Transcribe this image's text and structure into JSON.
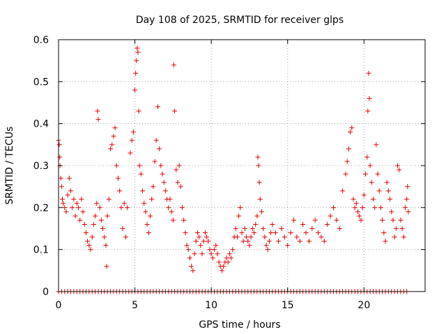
{
  "chart_data": {
    "type": "scatter",
    "title": "Day 108 of 2025, SRMTID for receiver glps",
    "xlabel": "GPS time / hours",
    "ylabel": "SRMTID / TECUs",
    "xlim": [
      0,
      24
    ],
    "ylim": [
      0,
      0.6
    ],
    "xticks": [
      0,
      5,
      10,
      15,
      20
    ],
    "yticks": [
      0,
      0.1,
      0.2,
      0.3,
      0.4,
      0.5,
      0.6
    ],
    "xtick_labels": [
      "0",
      "5",
      "10",
      "15",
      "20"
    ],
    "ytick_labels": [
      "0",
      "0.1",
      "0.2",
      "0.3",
      "0.4",
      "0.5",
      "0.6"
    ],
    "grid": true,
    "marker": "+",
    "color": "#e00000",
    "series": [
      {
        "name": "SRMTID",
        "points": [
          [
            0.0,
            0.36
          ],
          [
            0.05,
            0.35
          ],
          [
            0.08,
            0.32
          ],
          [
            0.1,
            0.3
          ],
          [
            0.15,
            0.27
          ],
          [
            0.2,
            0.25
          ],
          [
            0.25,
            0.22
          ],
          [
            0.3,
            0.21
          ],
          [
            0.4,
            0.2
          ],
          [
            0.5,
            0.19
          ],
          [
            0.6,
            0.23
          ],
          [
            0.7,
            0.27
          ],
          [
            0.8,
            0.24
          ],
          [
            0.9,
            0.2
          ],
          [
            1.0,
            0.22
          ],
          [
            1.1,
            0.18
          ],
          [
            1.2,
            0.21
          ],
          [
            1.3,
            0.2
          ],
          [
            1.4,
            0.17
          ],
          [
            1.5,
            0.22
          ],
          [
            1.6,
            0.19
          ],
          [
            1.7,
            0.16
          ],
          [
            1.8,
            0.14
          ],
          [
            1.9,
            0.12
          ],
          [
            2.0,
            0.11
          ],
          [
            2.1,
            0.1
          ],
          [
            2.2,
            0.13
          ],
          [
            2.3,
            0.16
          ],
          [
            2.4,
            0.18
          ],
          [
            2.5,
            0.21
          ],
          [
            2.55,
            0.43
          ],
          [
            2.6,
            0.41
          ],
          [
            2.7,
            0.2
          ],
          [
            2.8,
            0.17
          ],
          [
            2.9,
            0.15
          ],
          [
            3.0,
            0.13
          ],
          [
            3.1,
            0.11
          ],
          [
            3.15,
            0.06
          ],
          [
            3.2,
            0.18
          ],
          [
            3.3,
            0.22
          ],
          [
            3.4,
            0.34
          ],
          [
            3.5,
            0.35
          ],
          [
            3.6,
            0.37
          ],
          [
            3.7,
            0.39
          ],
          [
            3.8,
            0.3
          ],
          [
            3.9,
            0.27
          ],
          [
            4.0,
            0.24
          ],
          [
            4.1,
            0.2
          ],
          [
            4.2,
            0.15
          ],
          [
            4.3,
            0.21
          ],
          [
            4.4,
            0.13
          ],
          [
            4.5,
            0.2
          ],
          [
            4.7,
            0.33
          ],
          [
            4.8,
            0.36
          ],
          [
            4.9,
            0.38
          ],
          [
            5.0,
            0.48
          ],
          [
            5.05,
            0.52
          ],
          [
            5.1,
            0.55
          ],
          [
            5.15,
            0.58
          ],
          [
            5.2,
            0.57
          ],
          [
            5.25,
            0.43
          ],
          [
            5.3,
            0.3
          ],
          [
            5.4,
            0.28
          ],
          [
            5.5,
            0.24
          ],
          [
            5.6,
            0.21
          ],
          [
            5.7,
            0.19
          ],
          [
            5.8,
            0.16
          ],
          [
            5.9,
            0.14
          ],
          [
            6.0,
            0.18
          ],
          [
            6.1,
            0.22
          ],
          [
            6.2,
            0.25
          ],
          [
            6.3,
            0.31
          ],
          [
            6.4,
            0.36
          ],
          [
            6.5,
            0.44
          ],
          [
            6.6,
            0.34
          ],
          [
            6.7,
            0.3
          ],
          [
            6.8,
            0.28
          ],
          [
            6.9,
            0.26
          ],
          [
            7.0,
            0.24
          ],
          [
            7.1,
            0.22
          ],
          [
            7.2,
            0.2
          ],
          [
            7.3,
            0.22
          ],
          [
            7.4,
            0.19
          ],
          [
            7.5,
            0.17
          ],
          [
            7.55,
            0.54
          ],
          [
            7.6,
            0.43
          ],
          [
            7.7,
            0.29
          ],
          [
            7.8,
            0.26
          ],
          [
            7.9,
            0.3
          ],
          [
            8.0,
            0.25
          ],
          [
            8.1,
            0.2
          ],
          [
            8.2,
            0.17
          ],
          [
            8.3,
            0.14
          ],
          [
            8.4,
            0.11
          ],
          [
            8.5,
            0.1
          ],
          [
            8.6,
            0.08
          ],
          [
            8.7,
            0.06
          ],
          [
            8.8,
            0.05
          ],
          [
            8.9,
            0.09
          ],
          [
            9.0,
            0.12
          ],
          [
            9.1,
            0.14
          ],
          [
            9.2,
            0.13
          ],
          [
            9.3,
            0.11
          ],
          [
            9.4,
            0.09
          ],
          [
            9.5,
            0.12
          ],
          [
            9.6,
            0.14
          ],
          [
            9.7,
            0.13
          ],
          [
            9.8,
            0.12
          ],
          [
            9.9,
            0.1
          ],
          [
            10.0,
            0.09
          ],
          [
            10.1,
            0.08
          ],
          [
            10.2,
            0.1
          ],
          [
            10.3,
            0.11
          ],
          [
            10.4,
            0.09
          ],
          [
            10.5,
            0.07
          ],
          [
            10.6,
            0.06
          ],
          [
            10.7,
            0.05
          ],
          [
            10.8,
            0.06
          ],
          [
            10.9,
            0.07
          ],
          [
            11.0,
            0.08
          ],
          [
            11.1,
            0.07
          ],
          [
            11.2,
            0.09
          ],
          [
            11.3,
            0.08
          ],
          [
            11.4,
            0.1
          ],
          [
            11.5,
            0.13
          ],
          [
            11.6,
            0.15
          ],
          [
            11.7,
            0.13
          ],
          [
            11.8,
            0.18
          ],
          [
            11.9,
            0.2
          ],
          [
            12.0,
            0.14
          ],
          [
            12.1,
            0.12
          ],
          [
            12.2,
            0.15
          ],
          [
            12.3,
            0.13
          ],
          [
            12.4,
            0.12
          ],
          [
            12.5,
            0.11
          ],
          [
            12.6,
            0.13
          ],
          [
            12.7,
            0.15
          ],
          [
            12.8,
            0.14
          ],
          [
            12.9,
            0.16
          ],
          [
            13.0,
            0.18
          ],
          [
            13.05,
            0.32
          ],
          [
            13.1,
            0.3
          ],
          [
            13.15,
            0.26
          ],
          [
            13.2,
            0.22
          ],
          [
            13.3,
            0.19
          ],
          [
            13.4,
            0.15
          ],
          [
            13.5,
            0.13
          ],
          [
            13.6,
            0.11
          ],
          [
            13.7,
            0.1
          ],
          [
            13.8,
            0.12
          ],
          [
            13.9,
            0.14
          ],
          [
            14.0,
            0.16
          ],
          [
            14.2,
            0.14
          ],
          [
            14.4,
            0.12
          ],
          [
            14.6,
            0.15
          ],
          [
            14.8,
            0.13
          ],
          [
            15.0,
            0.11
          ],
          [
            15.2,
            0.14
          ],
          [
            15.4,
            0.17
          ],
          [
            15.6,
            0.13
          ],
          [
            15.8,
            0.12
          ],
          [
            16.0,
            0.16
          ],
          [
            16.2,
            0.14
          ],
          [
            16.4,
            0.12
          ],
          [
            16.6,
            0.15
          ],
          [
            16.8,
            0.17
          ],
          [
            17.0,
            0.14
          ],
          [
            17.2,
            0.13
          ],
          [
            17.4,
            0.12
          ],
          [
            17.6,
            0.16
          ],
          [
            17.8,
            0.18
          ],
          [
            18.0,
            0.2
          ],
          [
            18.2,
            0.17
          ],
          [
            18.4,
            0.15
          ],
          [
            18.6,
            0.24
          ],
          [
            18.8,
            0.28
          ],
          [
            18.9,
            0.31
          ],
          [
            19.0,
            0.34
          ],
          [
            19.1,
            0.38
          ],
          [
            19.2,
            0.39
          ],
          [
            19.3,
            0.22
          ],
          [
            19.4,
            0.2
          ],
          [
            19.5,
            0.21
          ],
          [
            19.6,
            0.19
          ],
          [
            19.7,
            0.18
          ],
          [
            19.8,
            0.17
          ],
          [
            19.9,
            0.2
          ],
          [
            20.0,
            0.23
          ],
          [
            20.1,
            0.28
          ],
          [
            20.2,
            0.32
          ],
          [
            20.25,
            0.43
          ],
          [
            20.3,
            0.52
          ],
          [
            20.35,
            0.46
          ],
          [
            20.4,
            0.3
          ],
          [
            20.5,
            0.26
          ],
          [
            20.6,
            0.22
          ],
          [
            20.7,
            0.2
          ],
          [
            20.8,
            0.35
          ],
          [
            20.9,
            0.28
          ],
          [
            21.0,
            0.24
          ],
          [
            21.1,
            0.2
          ],
          [
            21.2,
            0.17
          ],
          [
            21.3,
            0.14
          ],
          [
            21.4,
            0.12
          ],
          [
            21.5,
            0.26
          ],
          [
            21.6,
            0.24
          ],
          [
            21.7,
            0.22
          ],
          [
            21.8,
            0.19
          ],
          [
            21.9,
            0.17
          ],
          [
            22.0,
            0.13
          ],
          [
            22.1,
            0.15
          ],
          [
            22.2,
            0.3
          ],
          [
            22.3,
            0.29
          ],
          [
            22.4,
            0.17
          ],
          [
            22.5,
            0.15
          ],
          [
            22.6,
            0.13
          ],
          [
            22.7,
            0.2
          ],
          [
            22.8,
            0.22
          ],
          [
            22.85,
            0.25
          ],
          [
            22.9,
            0.19
          ]
        ],
        "zero_x": [
          0.0,
          0.2,
          0.4,
          0.6,
          0.8,
          1.0,
          1.2,
          1.4,
          1.6,
          1.8,
          2.0,
          2.2,
          2.4,
          2.6,
          2.8,
          3.0,
          3.2,
          3.4,
          3.6,
          3.8,
          4.0,
          4.2,
          4.4,
          4.6,
          4.8,
          5.0,
          5.2,
          5.4,
          5.6,
          5.8,
          6.0,
          6.2,
          6.4,
          6.6,
          6.8,
          7.0,
          7.2,
          7.4,
          7.6,
          7.8,
          8.0,
          8.2,
          8.4,
          8.6,
          8.8,
          9.0,
          9.2,
          9.4,
          9.6,
          9.8,
          10.0,
          10.2,
          10.4,
          10.6,
          10.8,
          11.0,
          11.2,
          11.4,
          11.6,
          11.8,
          12.0,
          12.2,
          12.4,
          12.6,
          12.8,
          13.0,
          13.2,
          13.4,
          13.6,
          13.8,
          14.0,
          14.2,
          14.4,
          14.6,
          14.8,
          15.0,
          15.2,
          15.4,
          15.6,
          15.8,
          16.0,
          16.2,
          16.4,
          16.6,
          16.8,
          17.0,
          17.2,
          17.4,
          17.6,
          17.8,
          18.0,
          18.2,
          18.4,
          18.6,
          18.8,
          19.0,
          19.2,
          19.4,
          19.6,
          19.8,
          20.0,
          20.2,
          20.4,
          20.6,
          20.8,
          21.0,
          21.2,
          21.4,
          21.6,
          21.8,
          22.0,
          22.2,
          22.4,
          22.6,
          22.8
        ]
      }
    ]
  }
}
